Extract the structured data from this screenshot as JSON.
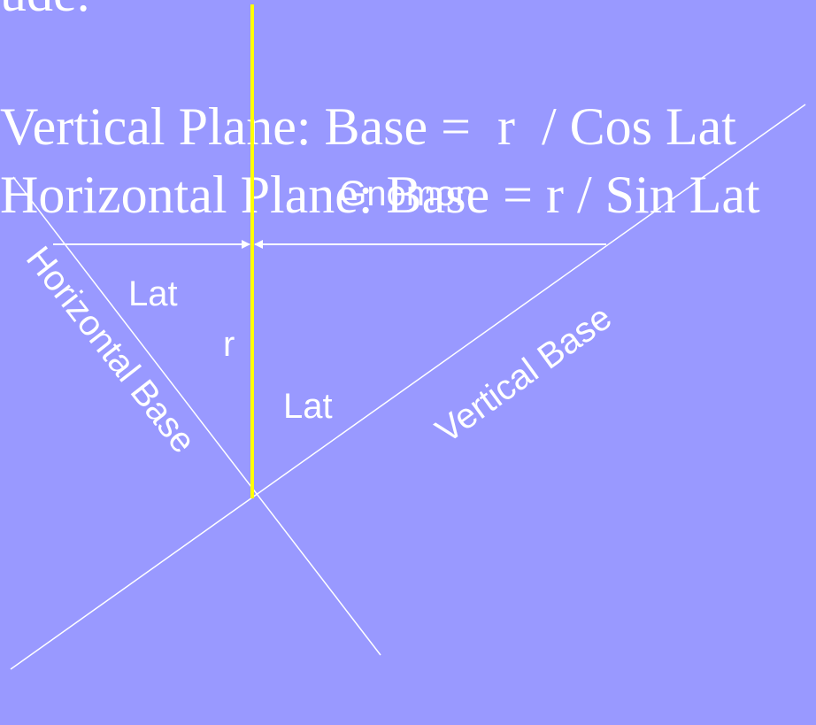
{
  "header": {
    "partial_text": "ude."
  },
  "formulas": [
    "Vertical Plane: Base =  r  / Cos Lat",
    "Horizontal Plane: Base = r / Sin Lat"
  ],
  "labels": {
    "gnomon": "Gnomon",
    "lat_upper": "Lat",
    "r": "r",
    "lat_lower": "Lat",
    "horizontal_base": "Horizontal Base",
    "vertical_base": "Vertical Base"
  }
}
